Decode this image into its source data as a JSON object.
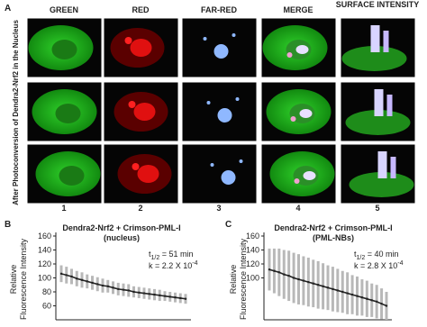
{
  "panel_a": {
    "label": "A",
    "columns": [
      "GREEN",
      "RED",
      "FAR-RED",
      "MERGE",
      "SURFACE INTENSITY"
    ],
    "row_label": "After Photoconversion of Dendra2-Nrf2 in the Nucleus",
    "numbers": [
      "1",
      "2",
      "3",
      "4",
      "5"
    ]
  },
  "chart_data": [
    {
      "type": "line",
      "label": "B",
      "title": "Dendra2-Nrf2 + Crimson-PML-I",
      "subtitle": "(nucleus)",
      "y_label": [
        "Relative",
        "Fluorescence Intensity"
      ],
      "annotation": {
        "t": "t",
        "t_sub": "1/2",
        "half_life": " = 51 min",
        "rate": "k = 2.2 X 10",
        "rate_exp": "-4"
      },
      "values": [
        106,
        104,
        102,
        99,
        97,
        95,
        93,
        91,
        89,
        88,
        86,
        84,
        83,
        82,
        80,
        79,
        78,
        77,
        76,
        75,
        74,
        73,
        72,
        71,
        70
      ],
      "errors": [
        12,
        12,
        11,
        11,
        11,
        10,
        10,
        10,
        10,
        9,
        9,
        9,
        9,
        9,
        8,
        8,
        8,
        8,
        8,
        8,
        7,
        7,
        7,
        7,
        7
      ],
      "ylim": [
        40,
        160
      ],
      "yticks": [
        60,
        80,
        100,
        120,
        140,
        160
      ],
      "color": "#222222",
      "error_color": "#b8b8b8"
    },
    {
      "type": "line",
      "label": "C",
      "title": "Dendra2-Nrf2 + Crimson-PML-I",
      "subtitle": "(PML-NBs)",
      "y_label": [
        "Relative",
        "Fluorescence Intensity"
      ],
      "annotation": {
        "t": "t",
        "t_sub": "1/2",
        "half_life": " = 40 min",
        "rate": "k = 2.8 X 10",
        "rate_exp": "-4"
      },
      "values": [
        112,
        110,
        108,
        105,
        103,
        100,
        98,
        96,
        94,
        92,
        90,
        88,
        86,
        84,
        82,
        80,
        78,
        76,
        74,
        72,
        70,
        68,
        66,
        63,
        60
      ],
      "errors": [
        30,
        32,
        34,
        35,
        36,
        36,
        36,
        35,
        35,
        34,
        34,
        33,
        32,
        32,
        31,
        30,
        30,
        28,
        28,
        26,
        26,
        24,
        24,
        22,
        20
      ],
      "ylim": [
        40,
        160
      ],
      "yticks": [
        100,
        120,
        140,
        160
      ],
      "color": "#222222",
      "error_color": "#b8b8b8"
    }
  ]
}
